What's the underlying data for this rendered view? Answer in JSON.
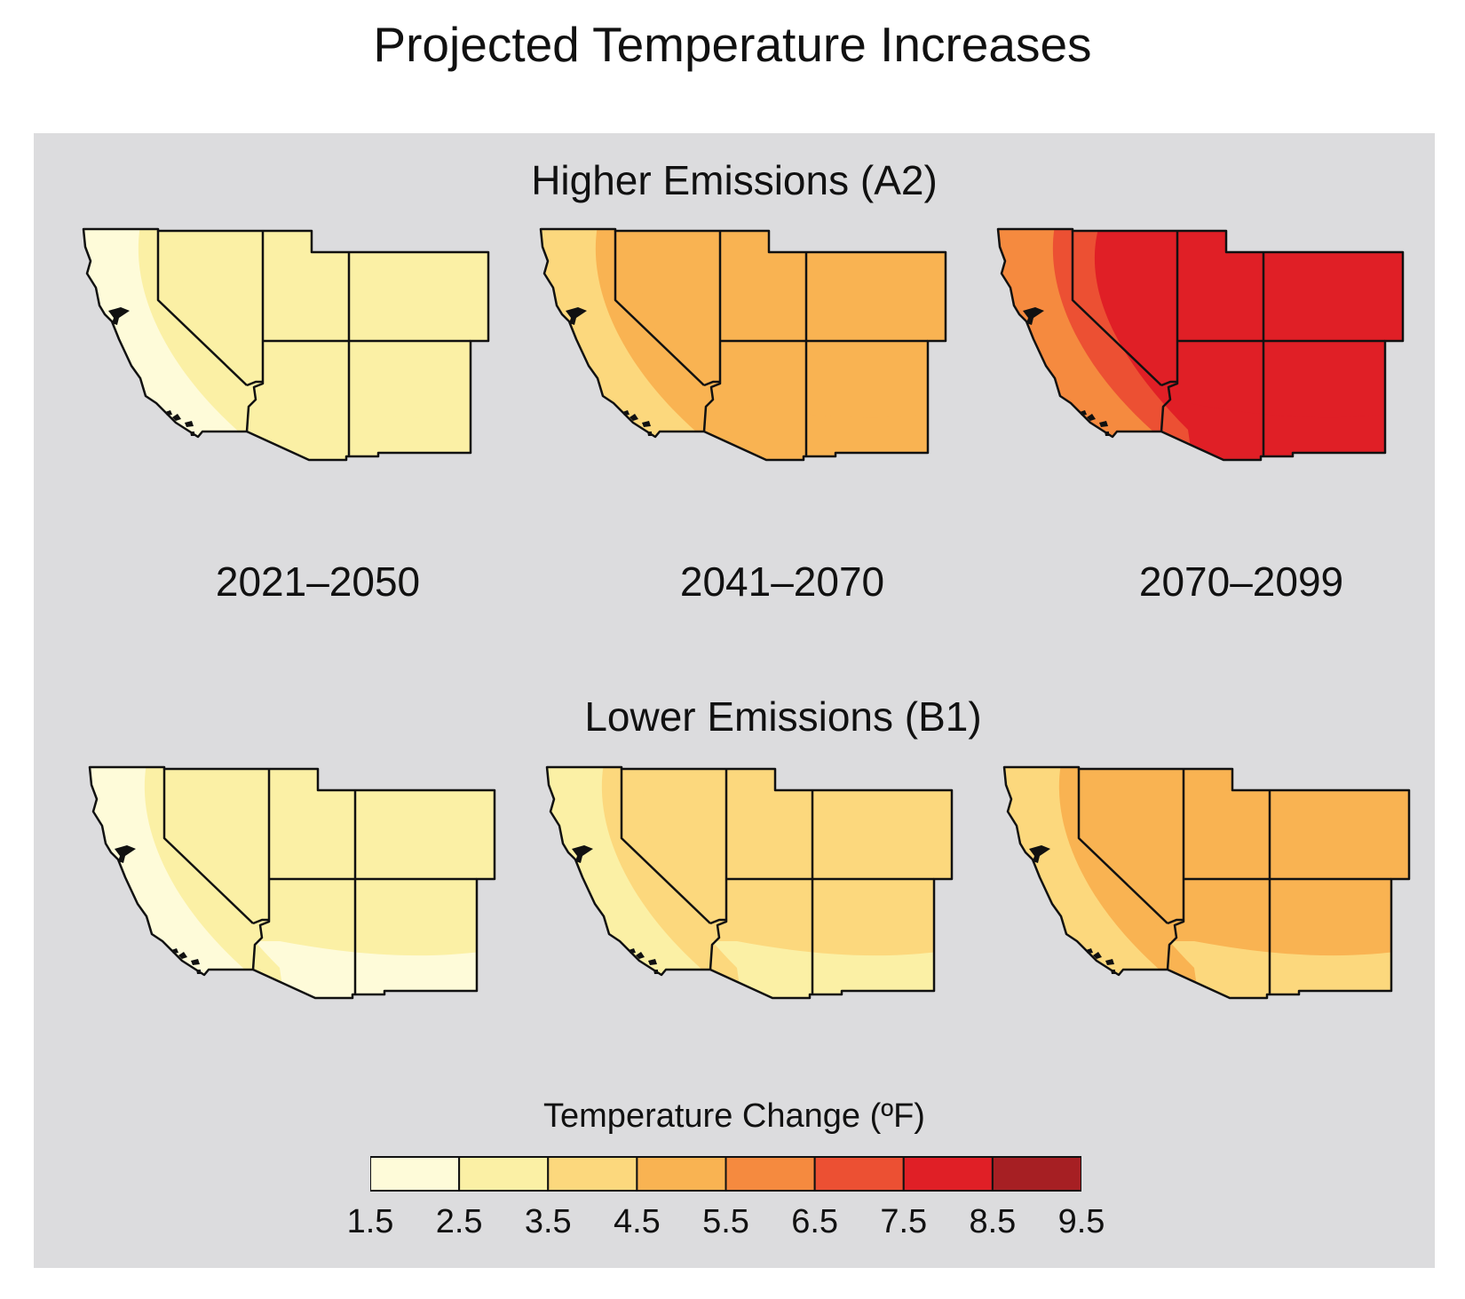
{
  "title": "Projected Temperature Increases",
  "colors": {
    "background": "#ffffff",
    "panel": "#dcdcde",
    "bins": [
      "#fefbd9",
      "#fbf0a5",
      "#fcd87d",
      "#f9b352",
      "#f58a3f",
      "#ec5033",
      "#e01f26",
      "#a61f23"
    ],
    "outline": "#111111"
  },
  "rows": [
    {
      "title": "Higher Emissions (A2)",
      "maps": [
        {
          "period": "2021–2050",
          "coast": 0,
          "inner": 1,
          "east": 1,
          "se": 1
        },
        {
          "period": "2041–2070",
          "coast": 2,
          "inner": 3,
          "east": 3,
          "se": 3
        },
        {
          "period": "2070–2099",
          "coast": 4,
          "inner": 5,
          "east": 6,
          "se": 6
        }
      ]
    },
    {
      "title": "Lower Emissions (B1)",
      "maps": [
        {
          "period": "",
          "coast": 0,
          "inner": 1,
          "east": 1,
          "se": 0
        },
        {
          "period": "",
          "coast": 1,
          "inner": 2,
          "east": 2,
          "se": 1
        },
        {
          "period": "",
          "coast": 2,
          "inner": 3,
          "east": 3,
          "se": 2
        }
      ]
    }
  ],
  "legend": {
    "title": "Temperature Change (ºF)",
    "ticks": [
      "1.5",
      "2.5",
      "3.5",
      "4.5",
      "5.5",
      "6.5",
      "7.5",
      "8.5",
      "9.5"
    ]
  }
}
